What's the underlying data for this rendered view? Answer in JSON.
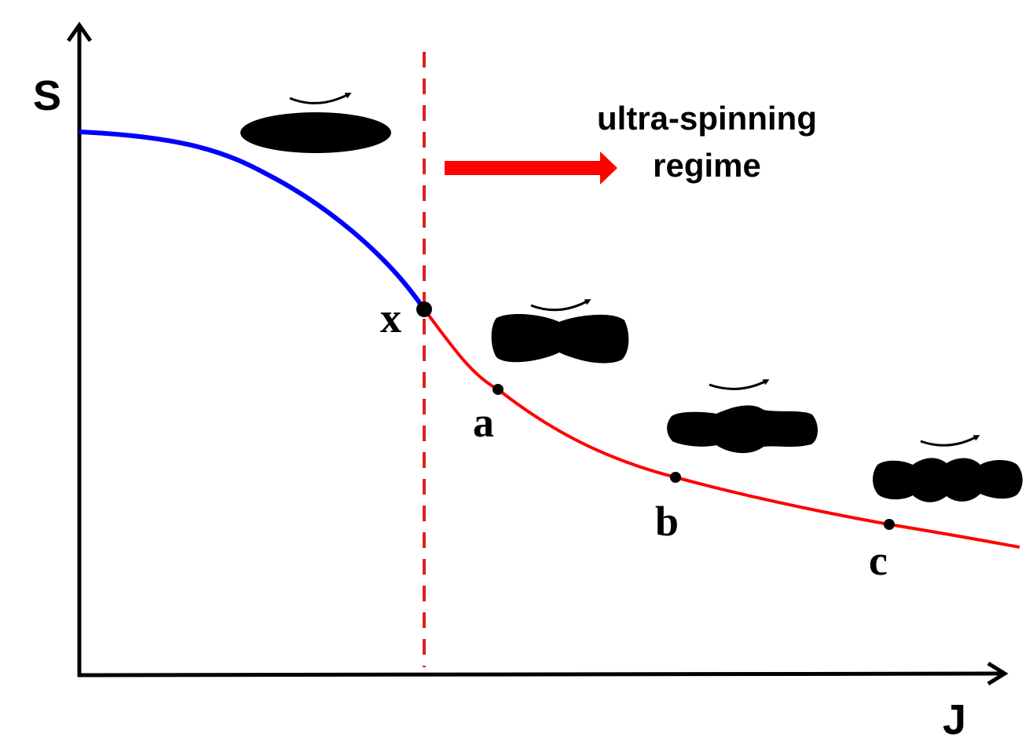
{
  "axes": {
    "y_label": "S",
    "x_label": "J"
  },
  "regime": {
    "label_line1": "ultra-spinning",
    "label_line2": "regime"
  },
  "points": {
    "x": "x",
    "a": "a",
    "b": "b",
    "c": "c"
  },
  "colors": {
    "axis": "#000000",
    "stable_branch": "#0000ff",
    "ultra_branch": "#ff0000",
    "threshold_line": "#e02020",
    "regime_arrow": "#ff0000",
    "black_hole": "#000000"
  },
  "icons": {
    "rotation": "rotation-arrow-icon",
    "black_hole_disk": "black-hole-disk-icon",
    "black_hole_one_bump": "black-hole-peanut-icon",
    "black_hole_two_bumps": "black-hole-two-ripples-icon",
    "black_hole_three_bumps": "black-hole-three-ripples-icon"
  }
}
